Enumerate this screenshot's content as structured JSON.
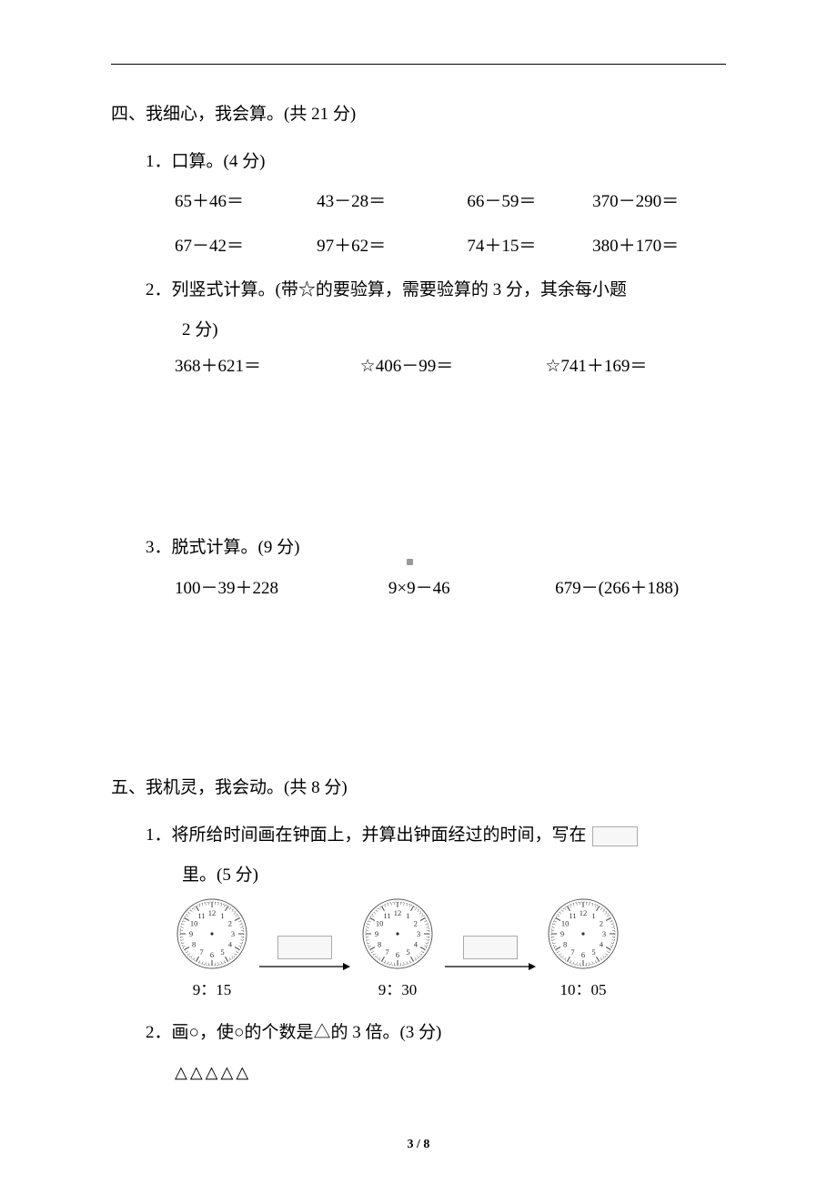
{
  "section4": {
    "heading": "四、我细心，我会算。(共 21 分)",
    "q1": {
      "title": "1．口算。(4 分)",
      "row1": {
        "c1": "65＋46＝",
        "c2": "43－28＝",
        "c3": "66－59＝",
        "c4": "370－290＝"
      },
      "row2": {
        "c1": "67－42＝",
        "c2": "97＋62＝",
        "c3": "74＋15＝",
        "c4": "380＋170＝"
      }
    },
    "q2": {
      "title_line1": "2．列竖式计算。(带☆的要验算，需要验算的 3 分，其余每小题",
      "title_line2": "2 分)",
      "c1": "368＋621＝",
      "c2": "☆406－99＝",
      "c3": "☆741＋169＝"
    },
    "q3": {
      "title": "3．脱式计算。(9 分)",
      "c1": "100－39＋228",
      "c2": "9×9－46",
      "c3": "679－(266＋188)"
    }
  },
  "section5": {
    "heading": "五、我机灵，我会动。(共 8 分)",
    "q1": {
      "title_pre": "1．将所给时间画在钟面上，并算出钟面经过的时间，写在",
      "title_post": "里。(5 分)",
      "times": {
        "t1": "9：15",
        "t2": "9：30",
        "t3": "10：05"
      }
    },
    "q2": {
      "title": "2．画○，使○的个数是△的 3 倍。(3 分)",
      "triangles": "△△△△△"
    }
  },
  "pagenum": "3 / 8",
  "clock": {
    "numbers": [
      "12",
      "1",
      "2",
      "3",
      "4",
      "5",
      "6",
      "7",
      "8",
      "9",
      "10",
      "11"
    ],
    "radius": 38,
    "face_fill": "#ffffff",
    "face_stroke": "#555555",
    "num_fontsize": 8.5,
    "tick_color": "#555555"
  },
  "colors": {
    "text": "#000000",
    "box_border": "#aaaaaa",
    "box_fill": "#f7f7f7",
    "arrow": "#000000"
  }
}
